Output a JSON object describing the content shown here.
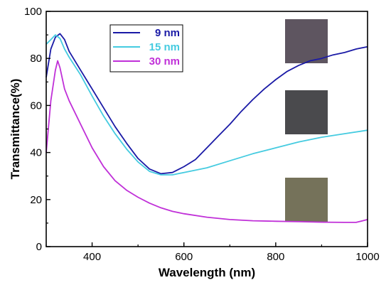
{
  "chart_data": {
    "type": "line",
    "xlabel": "Wavelength (nm)",
    "ylabel": "Transmittance(%)",
    "xlim": [
      300,
      1000
    ],
    "ylim": [
      0,
      100
    ],
    "x_ticks": [
      400,
      600,
      800,
      1000
    ],
    "y_ticks": [
      0,
      20,
      40,
      60,
      80,
      100
    ],
    "grid": false,
    "legend_position": "top-left",
    "series": [
      {
        "name": "9 nm",
        "color": "#1a1aa6",
        "points": [
          [
            300,
            72
          ],
          [
            310,
            84
          ],
          [
            320,
            89
          ],
          [
            330,
            90.5
          ],
          [
            340,
            88
          ],
          [
            350,
            83
          ],
          [
            375,
            75
          ],
          [
            400,
            67
          ],
          [
            425,
            59
          ],
          [
            450,
            51
          ],
          [
            475,
            44
          ],
          [
            500,
            37.5
          ],
          [
            525,
            33
          ],
          [
            550,
            31
          ],
          [
            575,
            31.5
          ],
          [
            600,
            34
          ],
          [
            625,
            37
          ],
          [
            650,
            42
          ],
          [
            675,
            47
          ],
          [
            700,
            52
          ],
          [
            725,
            57.5
          ],
          [
            750,
            62.5
          ],
          [
            775,
            67
          ],
          [
            800,
            71
          ],
          [
            825,
            74.5
          ],
          [
            850,
            77
          ],
          [
            875,
            79
          ],
          [
            900,
            80
          ],
          [
            925,
            81.5
          ],
          [
            950,
            82.5
          ],
          [
            975,
            84
          ],
          [
            1000,
            85
          ]
        ]
      },
      {
        "name": "15 nm",
        "color": "#45cbe0",
        "points": [
          [
            300,
            86
          ],
          [
            310,
            88
          ],
          [
            320,
            90
          ],
          [
            330,
            88.5
          ],
          [
            340,
            84
          ],
          [
            350,
            80.5
          ],
          [
            375,
            73
          ],
          [
            400,
            64
          ],
          [
            425,
            55.5
          ],
          [
            450,
            48
          ],
          [
            475,
            41.5
          ],
          [
            500,
            36
          ],
          [
            525,
            32
          ],
          [
            550,
            30.5
          ],
          [
            575,
            30.5
          ],
          [
            600,
            31.5
          ],
          [
            650,
            33.5
          ],
          [
            700,
            36.5
          ],
          [
            750,
            39.5
          ],
          [
            800,
            42
          ],
          [
            850,
            44.5
          ],
          [
            900,
            46.5
          ],
          [
            950,
            48
          ],
          [
            1000,
            49.5
          ]
        ]
      },
      {
        "name": "30 nm",
        "color": "#c030d8",
        "points": [
          [
            300,
            40
          ],
          [
            310,
            62
          ],
          [
            320,
            75
          ],
          [
            325,
            79
          ],
          [
            330,
            76
          ],
          [
            340,
            67
          ],
          [
            350,
            62
          ],
          [
            375,
            52
          ],
          [
            400,
            42
          ],
          [
            425,
            34
          ],
          [
            450,
            28
          ],
          [
            475,
            24
          ],
          [
            500,
            21
          ],
          [
            525,
            18.5
          ],
          [
            550,
            16.5
          ],
          [
            575,
            15
          ],
          [
            600,
            14
          ],
          [
            650,
            12.5
          ],
          [
            700,
            11.5
          ],
          [
            750,
            11
          ],
          [
            800,
            10.8
          ],
          [
            850,
            10.6
          ],
          [
            900,
            10.4
          ],
          [
            950,
            10.3
          ],
          [
            975,
            10.3
          ],
          [
            1000,
            11.5
          ]
        ]
      }
    ]
  },
  "insets": [
    {
      "color": "#5e5560"
    },
    {
      "color": "#4a4a4d"
    },
    {
      "color": "#75725a"
    }
  ]
}
